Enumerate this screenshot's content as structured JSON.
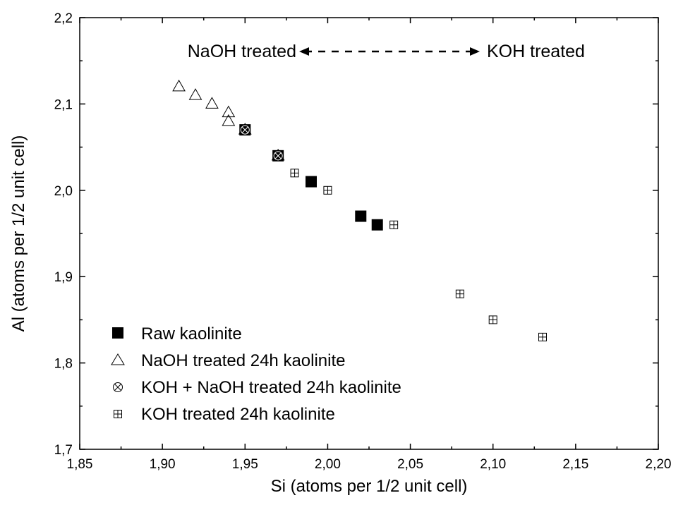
{
  "chart_data": {
    "type": "scatter",
    "xlabel": "Si (atoms per 1/2 unit cell)",
    "ylabel": "Al (atoms per 1/2 unit cell)",
    "xlim": [
      1.85,
      2.2
    ],
    "ylim": [
      1.7,
      2.2
    ],
    "x_ticks": [
      "1,85",
      "1,90",
      "1,95",
      "2,00",
      "2,05",
      "2,10",
      "2,15",
      "2,20"
    ],
    "y_ticks": [
      "1,7",
      "1,8",
      "1,9",
      "2,0",
      "2,1",
      "2,2"
    ],
    "legend_position": "bottom-left",
    "annotations": {
      "left_label": "NaOH treated",
      "right_label": "KOH treated"
    },
    "series": [
      {
        "name": "Raw kaolinite",
        "marker": "filled-square",
        "points": [
          [
            1.95,
            2.07
          ],
          [
            1.97,
            2.04
          ],
          [
            1.99,
            2.01
          ],
          [
            2.02,
            1.97
          ],
          [
            2.03,
            1.96
          ]
        ]
      },
      {
        "name": "NaOH treated 24h kaolinite",
        "marker": "open-triangle",
        "points": [
          [
            1.91,
            2.12
          ],
          [
            1.92,
            2.11
          ],
          [
            1.93,
            2.1
          ],
          [
            1.94,
            2.09
          ],
          [
            1.94,
            2.08
          ],
          [
            1.95,
            2.07
          ],
          [
            1.97,
            2.04
          ]
        ]
      },
      {
        "name": "KOH + NaOH treated 24h kaolinite",
        "marker": "circle-x",
        "points": [
          [
            1.95,
            2.07
          ],
          [
            1.97,
            2.04
          ]
        ]
      },
      {
        "name": "KOH treated 24h kaolinite",
        "marker": "square-plus",
        "points": [
          [
            1.98,
            2.02
          ],
          [
            2.0,
            2.0
          ],
          [
            2.04,
            1.96
          ],
          [
            2.08,
            1.88
          ],
          [
            2.1,
            1.85
          ],
          [
            2.13,
            1.83
          ]
        ]
      }
    ]
  }
}
